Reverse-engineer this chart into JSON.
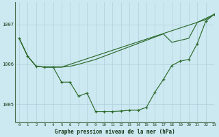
{
  "title": "Graphe pression niveau de la mer (hPa)",
  "background_color": "#cce8f0",
  "grid_color": "#b0d0dc",
  "line_color": "#2d6b2d",
  "xlim": [
    -0.5,
    23
  ],
  "ylim": [
    1004.55,
    1007.55
  ],
  "yticks": [
    1005,
    1006,
    1007
  ],
  "xticks": [
    0,
    1,
    2,
    3,
    4,
    5,
    6,
    7,
    8,
    9,
    10,
    11,
    12,
    13,
    14,
    15,
    16,
    17,
    18,
    19,
    20,
    21,
    22,
    23
  ],
  "series_main": [
    1006.65,
    1006.2,
    1005.95,
    1005.93,
    1005.93,
    1005.55,
    1005.55,
    1005.2,
    1005.28,
    1004.82,
    1004.82,
    1004.82,
    1004.83,
    1004.85,
    1004.85,
    1004.92,
    1005.3,
    1005.62,
    1005.97,
    1006.08,
    1006.12,
    1006.52,
    1007.08,
    1007.25
  ],
  "series_line1": [
    1006.65,
    1006.2,
    1005.95,
    1005.93,
    1005.93,
    1005.93,
    1006.0,
    1006.07,
    1006.14,
    1006.21,
    1006.28,
    1006.35,
    1006.42,
    1006.49,
    1006.56,
    1006.63,
    1006.7,
    1006.77,
    1006.84,
    1006.91,
    1006.98,
    1007.05,
    1007.12,
    1007.25
  ],
  "series_line2": [
    1006.65,
    1006.2,
    1005.95,
    1005.93,
    1005.93,
    1005.93,
    1005.95,
    1006.0,
    1006.06,
    1006.12,
    1006.2,
    1006.28,
    1006.36,
    1006.44,
    1006.52,
    1006.6,
    1006.68,
    1006.76,
    1006.55,
    1006.6,
    1006.65,
    1007.05,
    1007.15,
    1007.25
  ]
}
